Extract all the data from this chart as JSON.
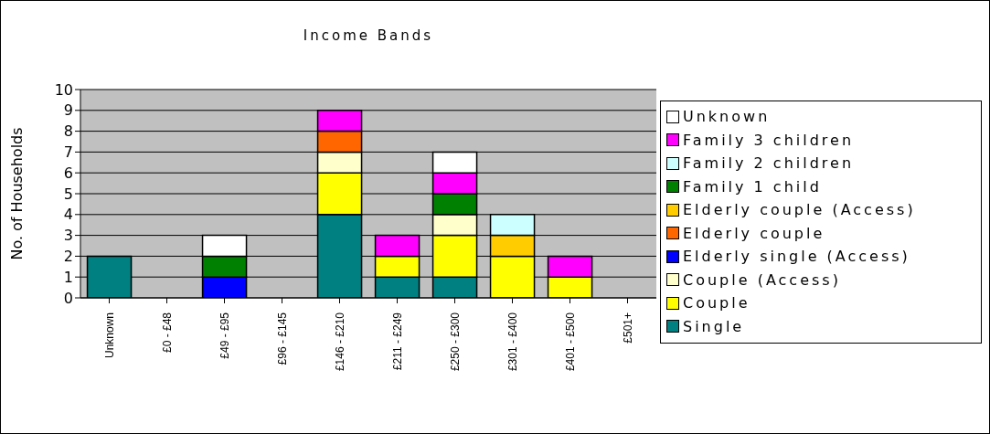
{
  "chart_data": {
    "type": "bar",
    "title": "Income Bands",
    "ylabel": "No. of Households",
    "stacked": true,
    "grid": "y",
    "legend": "right",
    "categories": [
      "Unknown",
      "£0 - £48",
      "£49 - £95",
      "£96 - £145",
      "£146 - £210",
      "£211 - £249",
      "£250 - £300",
      "£301 - £400",
      "£401 - £500",
      "£501+"
    ],
    "ylim": [
      0,
      10
    ],
    "yticks": [
      0,
      1,
      2,
      3,
      4,
      5,
      6,
      7,
      8,
      9,
      10
    ],
    "series": [
      {
        "name": "Single",
        "color": "#008080",
        "values": [
          2,
          null,
          null,
          null,
          4,
          1,
          1,
          null,
          null,
          null
        ]
      },
      {
        "name": "Couple",
        "color": "#ffff00",
        "values": [
          null,
          null,
          null,
          null,
          2,
          1,
          2,
          2,
          1,
          null
        ]
      },
      {
        "name": "Couple (Access)",
        "color": "#ffffcc",
        "values": [
          null,
          null,
          null,
          null,
          1,
          null,
          1,
          null,
          null,
          null
        ]
      },
      {
        "name": "Elderly single (Access)",
        "color": "#0000ff",
        "values": [
          null,
          null,
          1,
          null,
          null,
          null,
          null,
          null,
          null,
          null
        ]
      },
      {
        "name": "Elderly couple",
        "color": "#ff6600",
        "values": [
          null,
          null,
          null,
          null,
          1,
          null,
          null,
          null,
          null,
          null
        ]
      },
      {
        "name": "Elderly couple (Access)",
        "color": "#ffcc00",
        "values": [
          null,
          null,
          null,
          null,
          null,
          null,
          null,
          1,
          null,
          null
        ]
      },
      {
        "name": "Family 1 child",
        "color": "#008000",
        "values": [
          null,
          null,
          1,
          null,
          null,
          null,
          1,
          null,
          null,
          null
        ]
      },
      {
        "name": "Family 2 children",
        "color": "#ccffff",
        "values": [
          null,
          null,
          null,
          null,
          null,
          null,
          null,
          1,
          null,
          null
        ]
      },
      {
        "name": "Family 3 children",
        "color": "#ff00ff",
        "values": [
          null,
          null,
          null,
          null,
          1,
          1,
          1,
          null,
          1,
          null
        ]
      },
      {
        "name": "Unknown",
        "color": "#ffffff",
        "values": [
          null,
          null,
          1,
          null,
          null,
          null,
          1,
          null,
          null,
          null
        ]
      }
    ]
  }
}
